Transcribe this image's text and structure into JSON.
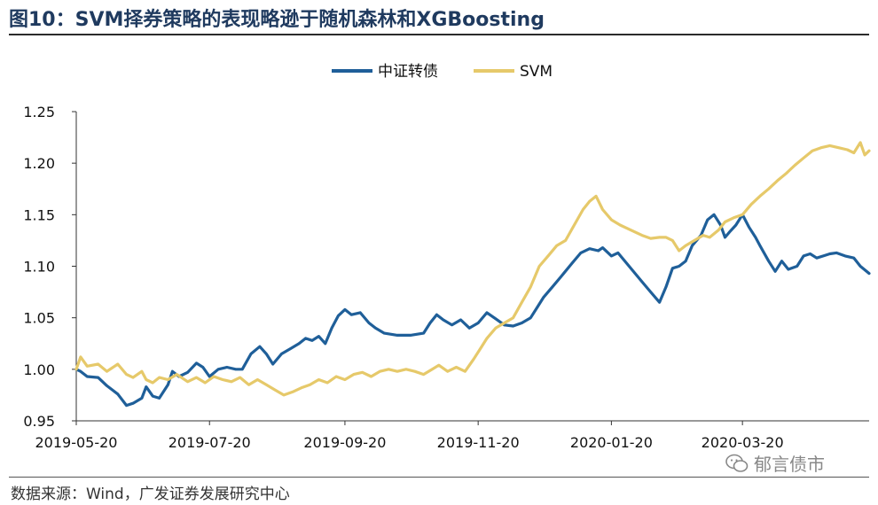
{
  "header": {
    "title": "图10：SVM择券策略的表现略逊于随机森林和XGBoosting"
  },
  "footer": {
    "source": "数据来源：Wind，广发证券发展研究中心",
    "watermark": "郁言债市"
  },
  "colors": {
    "series_1": "#1f5f99",
    "series_2": "#e6c96a",
    "axis": "#333333"
  },
  "chart_data": {
    "type": "line",
    "title": "",
    "xlabel": "",
    "ylabel": "",
    "ylim": [
      0.95,
      1.25
    ],
    "yticks": [
      0.95,
      1.0,
      1.05,
      1.1,
      1.15,
      1.2,
      1.25
    ],
    "ytick_labels": [
      "0.95",
      "1.00",
      "1.05",
      "1.10",
      "1.15",
      "1.20",
      "1.25"
    ],
    "xlim": [
      "2019-05-20",
      "2020-05-17"
    ],
    "xtick_labels": [
      "2019-05-20",
      "2019-07-20",
      "2019-09-20",
      "2019-11-20",
      "2020-01-20",
      "2020-03-20"
    ],
    "legend": "top-center",
    "grid": false,
    "series": [
      {
        "name": "中证转债",
        "color": "#1f5f99",
        "points": [
          [
            "2019-05-20",
            1.0
          ],
          [
            "2019-05-22",
            0.998
          ],
          [
            "2019-05-25",
            0.993
          ],
          [
            "2019-05-30",
            0.992
          ],
          [
            "2019-06-03",
            0.984
          ],
          [
            "2019-06-08",
            0.976
          ],
          [
            "2019-06-12",
            0.965
          ],
          [
            "2019-06-15",
            0.967
          ],
          [
            "2019-06-19",
            0.972
          ],
          [
            "2019-06-21",
            0.983
          ],
          [
            "2019-06-24",
            0.974
          ],
          [
            "2019-06-27",
            0.972
          ],
          [
            "2019-07-01",
            0.985
          ],
          [
            "2019-07-03",
            0.998
          ],
          [
            "2019-07-06",
            0.993
          ],
          [
            "2019-07-10",
            0.997
          ],
          [
            "2019-07-14",
            1.006
          ],
          [
            "2019-07-17",
            1.002
          ],
          [
            "2019-07-20",
            0.993
          ],
          [
            "2019-07-24",
            1.0
          ],
          [
            "2019-07-28",
            1.002
          ],
          [
            "2019-08-01",
            1.0
          ],
          [
            "2019-08-04",
            1.0
          ],
          [
            "2019-08-08",
            1.015
          ],
          [
            "2019-08-12",
            1.022
          ],
          [
            "2019-08-15",
            1.015
          ],
          [
            "2019-08-18",
            1.005
          ],
          [
            "2019-08-22",
            1.015
          ],
          [
            "2019-08-26",
            1.02
          ],
          [
            "2019-08-30",
            1.025
          ],
          [
            "2019-09-02",
            1.03
          ],
          [
            "2019-09-05",
            1.028
          ],
          [
            "2019-09-08",
            1.032
          ],
          [
            "2019-09-11",
            1.025
          ],
          [
            "2019-09-14",
            1.04
          ],
          [
            "2019-09-17",
            1.052
          ],
          [
            "2019-09-20",
            1.058
          ],
          [
            "2019-09-23",
            1.053
          ],
          [
            "2019-09-27",
            1.055
          ],
          [
            "2019-10-01",
            1.045
          ],
          [
            "2019-10-04",
            1.04
          ],
          [
            "2019-10-08",
            1.035
          ],
          [
            "2019-10-14",
            1.033
          ],
          [
            "2019-10-20",
            1.033
          ],
          [
            "2019-10-26",
            1.035
          ],
          [
            "2019-10-29",
            1.045
          ],
          [
            "2019-11-01",
            1.053
          ],
          [
            "2019-11-04",
            1.048
          ],
          [
            "2019-11-08",
            1.043
          ],
          [
            "2019-11-12",
            1.048
          ],
          [
            "2019-11-16",
            1.04
          ],
          [
            "2019-11-20",
            1.045
          ],
          [
            "2019-11-24",
            1.055
          ],
          [
            "2019-11-28",
            1.049
          ],
          [
            "2019-12-02",
            1.043
          ],
          [
            "2019-12-06",
            1.042
          ],
          [
            "2019-12-10",
            1.045
          ],
          [
            "2019-12-14",
            1.05
          ],
          [
            "2019-12-17",
            1.06
          ],
          [
            "2019-12-20",
            1.07
          ],
          [
            "2019-12-24",
            1.08
          ],
          [
            "2019-12-28",
            1.09
          ],
          [
            "2020-01-02",
            1.103
          ],
          [
            "2020-01-06",
            1.113
          ],
          [
            "2020-01-10",
            1.117
          ],
          [
            "2020-01-14",
            1.115
          ],
          [
            "2020-01-16",
            1.118
          ],
          [
            "2020-01-20",
            1.11
          ],
          [
            "2020-01-23",
            1.113
          ],
          [
            "2020-02-03",
            1.085
          ],
          [
            "2020-02-07",
            1.075
          ],
          [
            "2020-02-11",
            1.065
          ],
          [
            "2020-02-14",
            1.08
          ],
          [
            "2020-02-17",
            1.098
          ],
          [
            "2020-02-20",
            1.1
          ],
          [
            "2020-02-23",
            1.105
          ],
          [
            "2020-02-26",
            1.12
          ],
          [
            "2020-03-01",
            1.13
          ],
          [
            "2020-03-04",
            1.145
          ],
          [
            "2020-03-07",
            1.15
          ],
          [
            "2020-03-10",
            1.14
          ],
          [
            "2020-03-12",
            1.128
          ],
          [
            "2020-03-14",
            1.133
          ],
          [
            "2020-03-17",
            1.14
          ],
          [
            "2020-03-20",
            1.15
          ],
          [
            "2020-03-23",
            1.138
          ],
          [
            "2020-03-26",
            1.128
          ],
          [
            "2020-03-28",
            1.12
          ],
          [
            "2020-04-01",
            1.105
          ],
          [
            "2020-04-04",
            1.095
          ],
          [
            "2020-04-07",
            1.105
          ],
          [
            "2020-04-10",
            1.097
          ],
          [
            "2020-04-14",
            1.1
          ],
          [
            "2020-04-17",
            1.11
          ],
          [
            "2020-04-20",
            1.112
          ],
          [
            "2020-04-23",
            1.108
          ],
          [
            "2020-04-26",
            1.11
          ],
          [
            "2020-04-29",
            1.112
          ],
          [
            "2020-05-02",
            1.113
          ],
          [
            "2020-05-06",
            1.11
          ],
          [
            "2020-05-10",
            1.108
          ],
          [
            "2020-05-13",
            1.1
          ],
          [
            "2020-05-17",
            1.093
          ]
        ]
      },
      {
        "name": "SVM",
        "color": "#e6c96a",
        "points": [
          [
            "2019-05-20",
            1.0
          ],
          [
            "2019-05-22",
            1.012
          ],
          [
            "2019-05-25",
            1.003
          ],
          [
            "2019-05-30",
            1.005
          ],
          [
            "2019-06-03",
            0.998
          ],
          [
            "2019-06-08",
            1.005
          ],
          [
            "2019-06-12",
            0.995
          ],
          [
            "2019-06-15",
            0.992
          ],
          [
            "2019-06-19",
            0.998
          ],
          [
            "2019-06-21",
            0.99
          ],
          [
            "2019-06-24",
            0.987
          ],
          [
            "2019-06-27",
            0.992
          ],
          [
            "2019-07-01",
            0.99
          ],
          [
            "2019-07-05",
            0.995
          ],
          [
            "2019-07-10",
            0.988
          ],
          [
            "2019-07-14",
            0.992
          ],
          [
            "2019-07-18",
            0.987
          ],
          [
            "2019-07-22",
            0.993
          ],
          [
            "2019-07-26",
            0.99
          ],
          [
            "2019-07-30",
            0.988
          ],
          [
            "2019-08-03",
            0.992
          ],
          [
            "2019-08-07",
            0.985
          ],
          [
            "2019-08-11",
            0.99
          ],
          [
            "2019-08-15",
            0.985
          ],
          [
            "2019-08-19",
            0.98
          ],
          [
            "2019-08-23",
            0.975
          ],
          [
            "2019-08-27",
            0.978
          ],
          [
            "2019-08-31",
            0.982
          ],
          [
            "2019-09-04",
            0.985
          ],
          [
            "2019-09-08",
            0.99
          ],
          [
            "2019-09-12",
            0.987
          ],
          [
            "2019-09-16",
            0.993
          ],
          [
            "2019-09-20",
            0.99
          ],
          [
            "2019-09-24",
            0.995
          ],
          [
            "2019-09-28",
            0.997
          ],
          [
            "2019-10-02",
            0.993
          ],
          [
            "2019-10-06",
            0.998
          ],
          [
            "2019-10-10",
            1.0
          ],
          [
            "2019-10-14",
            0.998
          ],
          [
            "2019-10-18",
            1.0
          ],
          [
            "2019-10-22",
            0.998
          ],
          [
            "2019-10-26",
            0.995
          ],
          [
            "2019-10-30",
            1.0
          ],
          [
            "2019-11-02",
            1.004
          ],
          [
            "2019-11-06",
            0.998
          ],
          [
            "2019-11-10",
            1.002
          ],
          [
            "2019-11-14",
            0.998
          ],
          [
            "2019-11-18",
            1.01
          ],
          [
            "2019-11-21",
            1.02
          ],
          [
            "2019-11-24",
            1.03
          ],
          [
            "2019-11-28",
            1.04
          ],
          [
            "2019-12-02",
            1.045
          ],
          [
            "2019-12-06",
            1.05
          ],
          [
            "2019-12-10",
            1.065
          ],
          [
            "2019-12-14",
            1.08
          ],
          [
            "2019-12-18",
            1.1
          ],
          [
            "2019-12-22",
            1.11
          ],
          [
            "2019-12-26",
            1.12
          ],
          [
            "2019-12-30",
            1.125
          ],
          [
            "2020-01-03",
            1.14
          ],
          [
            "2020-01-07",
            1.155
          ],
          [
            "2020-01-10",
            1.163
          ],
          [
            "2020-01-13",
            1.168
          ],
          [
            "2020-01-16",
            1.155
          ],
          [
            "2020-01-20",
            1.145
          ],
          [
            "2020-01-24",
            1.14
          ],
          [
            "2020-02-03",
            1.13
          ],
          [
            "2020-02-07",
            1.127
          ],
          [
            "2020-02-11",
            1.128
          ],
          [
            "2020-02-14",
            1.128
          ],
          [
            "2020-02-17",
            1.125
          ],
          [
            "2020-02-20",
            1.115
          ],
          [
            "2020-02-23",
            1.12
          ],
          [
            "2020-02-27",
            1.125
          ],
          [
            "2020-03-02",
            1.13
          ],
          [
            "2020-03-05",
            1.128
          ],
          [
            "2020-03-09",
            1.135
          ],
          [
            "2020-03-12",
            1.143
          ],
          [
            "2020-03-16",
            1.147
          ],
          [
            "2020-03-20",
            1.15
          ],
          [
            "2020-03-24",
            1.16
          ],
          [
            "2020-03-28",
            1.168
          ],
          [
            "2020-04-01",
            1.175
          ],
          [
            "2020-04-05",
            1.183
          ],
          [
            "2020-04-09",
            1.19
          ],
          [
            "2020-04-13",
            1.198
          ],
          [
            "2020-04-17",
            1.205
          ],
          [
            "2020-04-21",
            1.212
          ],
          [
            "2020-04-25",
            1.215
          ],
          [
            "2020-04-29",
            1.217
          ],
          [
            "2020-05-03",
            1.215
          ],
          [
            "2020-05-07",
            1.213
          ],
          [
            "2020-05-10",
            1.21
          ],
          [
            "2020-05-13",
            1.22
          ],
          [
            "2020-05-15",
            1.208
          ],
          [
            "2020-05-17",
            1.212
          ]
        ]
      }
    ]
  }
}
